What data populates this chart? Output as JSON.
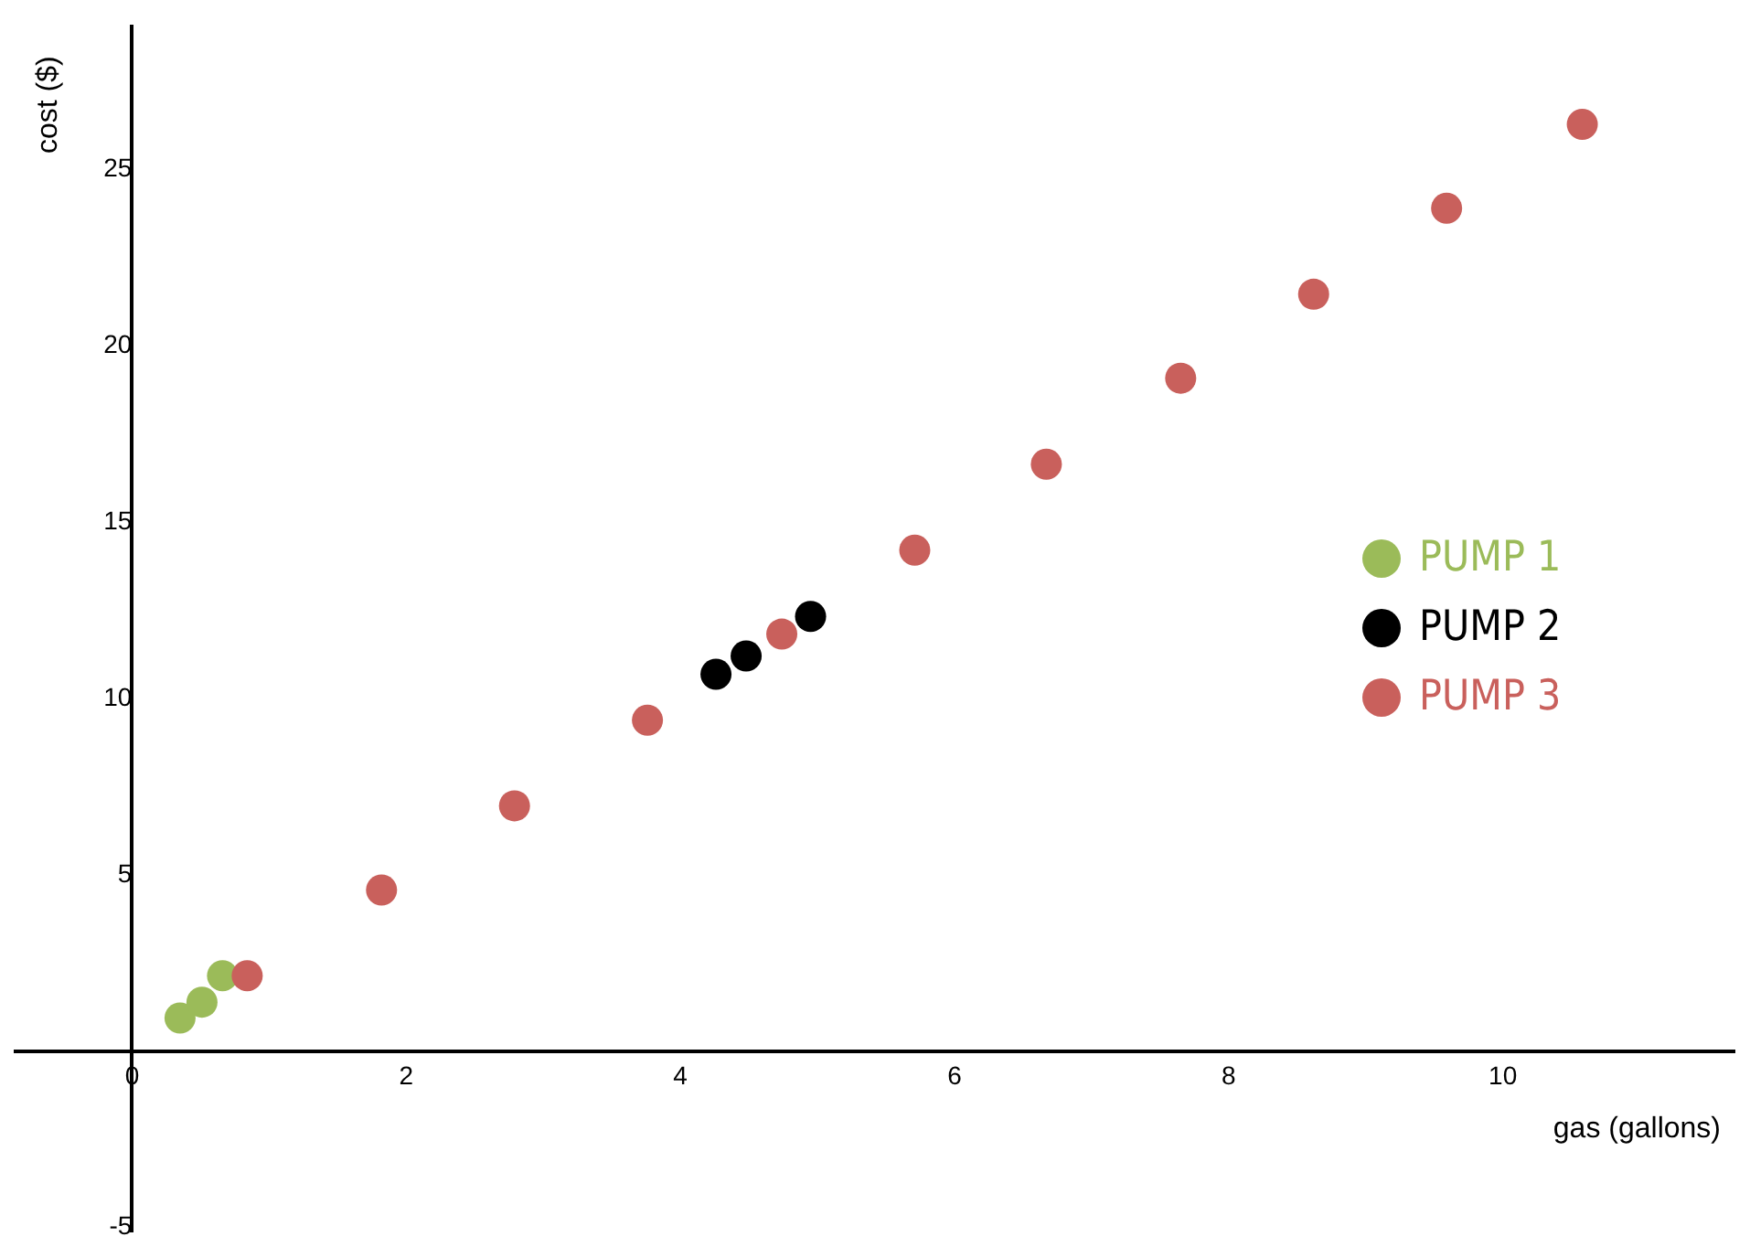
{
  "chart_data": {
    "type": "scatter",
    "xlabel": "gas (gallons)",
    "ylabel": "cost ($)",
    "xlim": [
      -0.85,
      11.69
    ],
    "ylim": [
      -5.12,
      29.07
    ],
    "xticks": [
      0,
      2,
      4,
      6,
      8,
      10
    ],
    "yticks": [
      -5,
      5,
      10,
      15,
      20,
      25
    ],
    "grid": false,
    "legend": "right",
    "marker": "circle",
    "series": [
      {
        "name": "PUMP 1",
        "color": "#9bbb59",
        "x": [
          0.35,
          0.51,
          0.66
        ],
        "values": [
          0.94,
          1.39,
          2.14
        ]
      },
      {
        "name": "PUMP 2",
        "color": "#000000",
        "x": [
          4.26,
          4.48,
          4.95
        ],
        "values": [
          10.69,
          11.21,
          12.33
        ]
      },
      {
        "name": "PUMP 3",
        "color": "#c9605c",
        "x": [
          0.84,
          1.82,
          2.79,
          3.76,
          4.74,
          5.71,
          6.67,
          7.65,
          8.62,
          9.59,
          10.58
        ],
        "values": [
          2.14,
          4.57,
          6.96,
          9.39,
          11.83,
          14.21,
          16.65,
          19.09,
          21.47,
          23.91,
          26.29
        ]
      }
    ]
  }
}
